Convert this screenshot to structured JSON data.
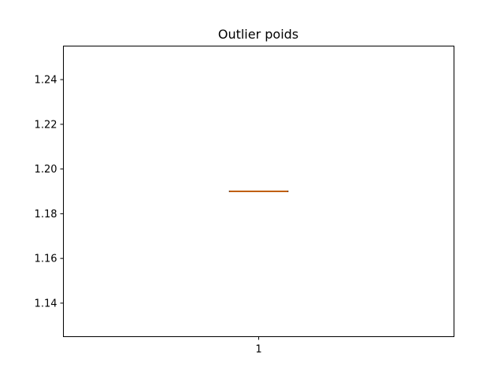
{
  "chart_data": {
    "type": "box",
    "title": "Outlier poids",
    "xlabel": "",
    "ylabel": "",
    "categories": [
      "1"
    ],
    "ylim": [
      1.125,
      1.255
    ],
    "yticks": [
      1.14,
      1.16,
      1.18,
      1.2,
      1.22,
      1.24
    ],
    "ytick_labels": [
      "1.14",
      "1.16",
      "1.18",
      "1.20",
      "1.22",
      "1.24"
    ],
    "grid": false,
    "boxes": [
      {
        "category": "1",
        "min": 1.19,
        "q1": 1.19,
        "median": 1.19,
        "q3": 1.19,
        "max": 1.19,
        "outliers": []
      }
    ],
    "colors": {
      "box": "#000000",
      "median": "#ff7f0e"
    }
  }
}
